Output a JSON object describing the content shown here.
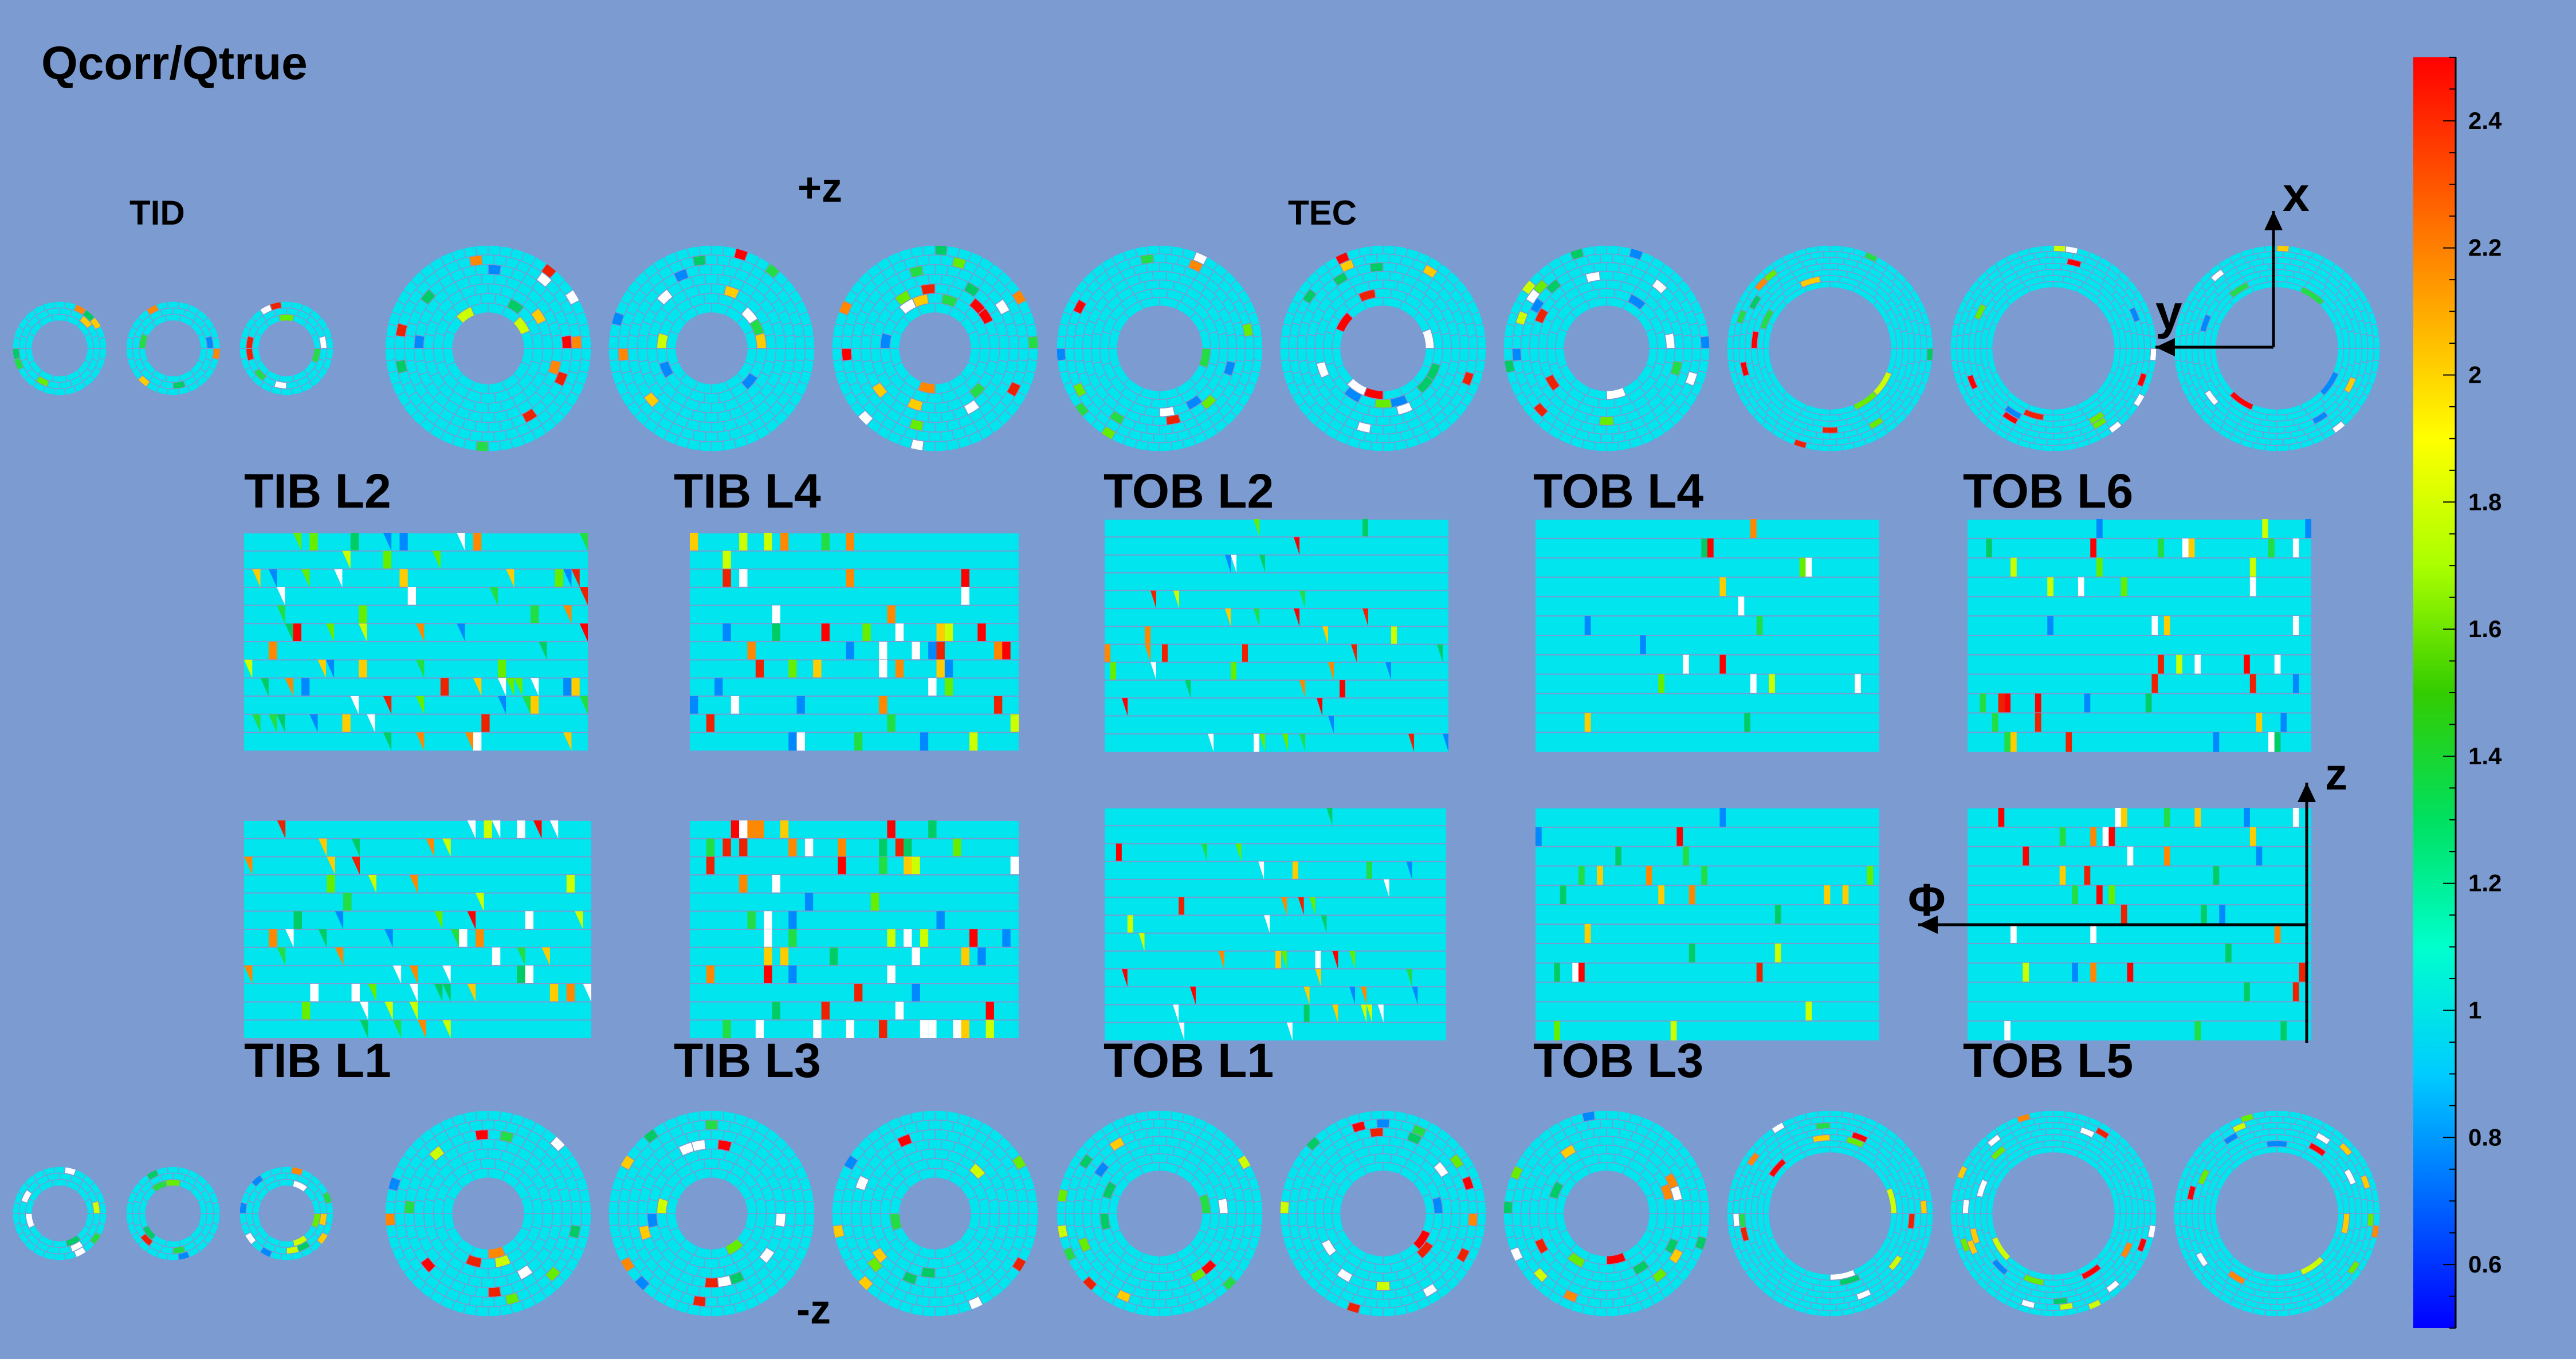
{
  "title": "Qcorr/Qtrue",
  "tid_label": "TID",
  "tec_label": "TEC",
  "plus_z_label": "+z",
  "minus_z_label": "-z",
  "axis_labels": {
    "x": "x",
    "y": "y",
    "z": "z",
    "phi": "Φ"
  },
  "tib_labels": {
    "l1": "TIB L1",
    "l2": "TIB L2",
    "l3": "TIB L3",
    "l4": "TIB L4"
  },
  "tob_labels": {
    "l1": "TOB L1",
    "l2": "TOB L2",
    "l3": "TOB L3",
    "l4": "TOB L4",
    "l5": "TOB L5",
    "l6": "TOB L6"
  },
  "colorbar": {
    "min": 0.5,
    "max": 2.5,
    "ticks": [
      "0.6",
      "0.8",
      "1",
      "1.2",
      "1.4",
      "1.6",
      "1.8",
      "2",
      "2.2",
      "2.4"
    ],
    "colors": [
      "#0000ff",
      "#0066ff",
      "#00ccff",
      "#00ffcc",
      "#00e060",
      "#33cc00",
      "#aaff00",
      "#ffff00",
      "#ffaa00",
      "#ff5500",
      "#ff0000"
    ]
  },
  "colors": {
    "background": "#7b9bd1",
    "module_base": "#00e5ee",
    "module_grid": "#7b9bd1",
    "missing": "#ffffff"
  }
}
